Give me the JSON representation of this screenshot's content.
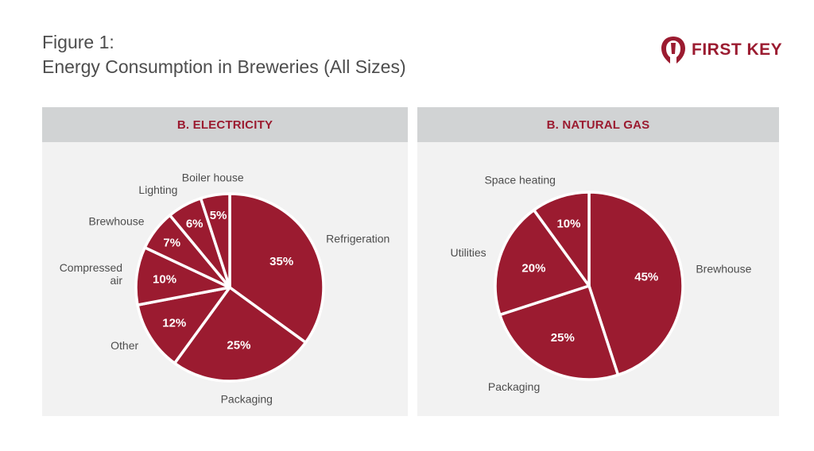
{
  "header": {
    "title_line1": "Figure 1:",
    "title_line2": "Energy Consumption in Breweries (All Sizes)"
  },
  "brand": {
    "name": "FIRST KEY",
    "icon": "first-key-logo-icon",
    "color": "#9b1b30"
  },
  "colors": {
    "slice": "#9b1b30",
    "header_bg": "#d1d3d4",
    "panel_bg": "#f2f2f2",
    "label": "#4d4d4d"
  },
  "chart_data": [
    {
      "type": "pie",
      "title": "B. ELECTRICITY",
      "categories": [
        "Refrigeration",
        "Packaging",
        "Other",
        "Compressed air",
        "Brewhouse",
        "Lighting",
        "Boiler house"
      ],
      "label_lines": [
        [
          "Refrigeration"
        ],
        [
          "Packaging"
        ],
        [
          "Other"
        ],
        [
          "Compressed",
          "air"
        ],
        [
          "Brewhouse"
        ],
        [
          "Lighting"
        ],
        [
          "Boiler house"
        ]
      ],
      "values": [
        35,
        25,
        12,
        10,
        7,
        6,
        5
      ],
      "value_labels": [
        "35%",
        "25%",
        "12%",
        "10%",
        "7%",
        "6%",
        "5%"
      ]
    },
    {
      "type": "pie",
      "title": "B. NATURAL GAS",
      "categories": [
        "Brewhouse",
        "Packaging",
        "Utilities",
        "Space heating"
      ],
      "label_lines": [
        [
          "Brewhouse"
        ],
        [
          "Packaging"
        ],
        [
          "Utilities"
        ],
        [
          "Space heating"
        ]
      ],
      "values": [
        45,
        25,
        20,
        10
      ],
      "value_labels": [
        "45%",
        "25%",
        "20%",
        "10%"
      ]
    }
  ]
}
